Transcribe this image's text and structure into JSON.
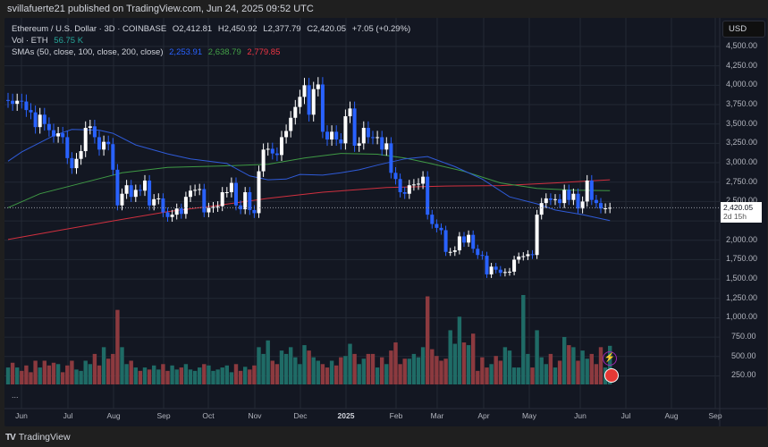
{
  "publisher_line": "svillafuerte21 published on TradingView.com, Jun 24, 2025 09:52 UTC",
  "legend": {
    "symbol": "Ethereum / U.S. Dollar · 3D · COINBASE",
    "open": "O2,412.81",
    "high": "H2,450.92",
    "low": "L2,377.79",
    "close": "C2,420.05",
    "change": "+7.05 (+0.29%)",
    "vol_label": "Vol · ETH",
    "vol_value": "56.75 K",
    "sma_label": "SMAs (50, close, 100, close, 200, close)",
    "sma50": "2,253.91",
    "sma100": "2,638.79",
    "sma200": "2,779.85"
  },
  "price_axis": {
    "currency": "USD",
    "labels": [
      "4,500.00",
      "4,250.00",
      "4,000.00",
      "3,750.00",
      "3,500.00",
      "3,250.00",
      "3,000.00",
      "2,750.00",
      "2,500.00",
      "2,000.00",
      "1,750.00",
      "1,500.00",
      "1,250.00",
      "1,000.00",
      "750.00",
      "500.00",
      "250.00"
    ],
    "current_price": "2,420.05",
    "countdown": "2d 15h"
  },
  "time_axis": [
    "Jun",
    "Jul",
    "Aug",
    "Sep",
    "Oct",
    "Nov",
    "Dec",
    "2025",
    "Feb",
    "Mar",
    "Apr",
    "May",
    "Jun",
    "Jul",
    "Aug",
    "Sep"
  ],
  "more_label": "...",
  "footer_brand": "TradingView",
  "colors": {
    "up": "#ffffff",
    "down": "#2962ff",
    "vol_up": "#1f6b66",
    "vol_down": "#8c3a3f",
    "sma50": "#2f5bd8",
    "sma100": "#3f9a45",
    "sma200": "#d1303f",
    "bg": "#131722"
  },
  "chart_data": {
    "type": "candlestick",
    "interval": "3D",
    "yrange": [
      250,
      4500
    ],
    "closes": [
      3800,
      3760,
      3800,
      3790,
      3680,
      3650,
      3460,
      3620,
      3500,
      3420,
      3340,
      3380,
      3330,
      3060,
      2930,
      3050,
      3150,
      3450,
      3470,
      3330,
      3170,
      3270,
      3240,
      2910,
      2450,
      2600,
      2710,
      2560,
      2650,
      2640,
      2770,
      2450,
      2530,
      2540,
      2360,
      2300,
      2330,
      2410,
      2340,
      2560,
      2640,
      2650,
      2660,
      2360,
      2420,
      2430,
      2440,
      2620,
      2620,
      2740,
      2450,
      2400,
      2620,
      2390,
      2350,
      2890,
      3170,
      3180,
      3120,
      3100,
      3330,
      3410,
      3580,
      3720,
      3850,
      4000,
      3620,
      3950,
      4010,
      3400,
      3300,
      3400,
      3300,
      3250,
      3600,
      3700,
      3220,
      3250,
      3450,
      3330,
      3320,
      3330,
      3170,
      3250,
      2870,
      2790,
      2620,
      2600,
      2710,
      2720,
      2730,
      2820,
      2330,
      2210,
      2160,
      2130,
      1850,
      1850,
      1870,
      2050,
      1970,
      2070,
      1890,
      1810,
      1800,
      1560,
      1660,
      1620,
      1580,
      1590,
      1595,
      1750,
      1790,
      1795,
      1820,
      1810,
      2330,
      2480,
      2540,
      2520,
      2530,
      2480,
      2650,
      2520,
      2600,
      2410,
      2500,
      2770,
      2520,
      2480,
      2410,
      2413,
      2420
    ],
    "volume_k": [
      25,
      32,
      25,
      20,
      28,
      18,
      35,
      25,
      35,
      28,
      32,
      30,
      18,
      28,
      35,
      22,
      20,
      35,
      30,
      45,
      28,
      55,
      38,
      45,
      110,
      55,
      30,
      35,
      25,
      20,
      25,
      22,
      28,
      22,
      30,
      20,
      28,
      22,
      25,
      30,
      22,
      20,
      25,
      30,
      28,
      20,
      22,
      25,
      28,
      18,
      30,
      20,
      26,
      22,
      28,
      55,
      45,
      65,
      35,
      30,
      50,
      45,
      55,
      40,
      30,
      58,
      50,
      40,
      35,
      30,
      25,
      35,
      28,
      40,
      42,
      60,
      45,
      30,
      38,
      45,
      45,
      25,
      40,
      30,
      50,
      62,
      30,
      38,
      38,
      45,
      40,
      55,
      130,
      52,
      42,
      35,
      38,
      80,
      60,
      100,
      62,
      58,
      75,
      20,
      40,
      25,
      30,
      42,
      35,
      55,
      50,
      25,
      25,
      132,
      45,
      25,
      80,
      40,
      30,
      45,
      25,
      35,
      70,
      58,
      55,
      35,
      50,
      38,
      45,
      30,
      55,
      25,
      57
    ],
    "sma50": [
      [
        0,
        3020
      ],
      [
        3,
        3140
      ],
      [
        10,
        3350
      ],
      [
        14,
        3430
      ],
      [
        20,
        3420
      ],
      [
        23,
        3380
      ],
      [
        28,
        3230
      ],
      [
        35,
        3115
      ],
      [
        40,
        3050
      ],
      [
        48,
        2990
      ],
      [
        53,
        2830
      ],
      [
        57,
        2780
      ],
      [
        61,
        2790
      ],
      [
        64,
        2850
      ],
      [
        69,
        2840
      ],
      [
        73,
        2870
      ],
      [
        77,
        2910
      ],
      [
        81,
        2970
      ],
      [
        87,
        3050
      ],
      [
        92,
        3080
      ],
      [
        98,
        2950
      ],
      [
        104,
        2790
      ],
      [
        110,
        2560
      ],
      [
        116,
        2470
      ],
      [
        120,
        2390
      ],
      [
        126,
        2330
      ],
      [
        132,
        2254
      ]
    ],
    "sma100": [
      [
        0,
        2420
      ],
      [
        7,
        2600
      ],
      [
        15,
        2720
      ],
      [
        25,
        2870
      ],
      [
        35,
        2940
      ],
      [
        48,
        2960
      ],
      [
        57,
        2980
      ],
      [
        65,
        3060
      ],
      [
        73,
        3120
      ],
      [
        81,
        3110
      ],
      [
        87,
        3060
      ],
      [
        92,
        3000
      ],
      [
        100,
        2890
      ],
      [
        108,
        2740
      ],
      [
        116,
        2670
      ],
      [
        124,
        2645
      ],
      [
        132,
        2639
      ]
    ],
    "sma200": [
      [
        0,
        2010
      ],
      [
        11,
        2125
      ],
      [
        23,
        2250
      ],
      [
        35,
        2370
      ],
      [
        46,
        2450
      ],
      [
        57,
        2540
      ],
      [
        69,
        2620
      ],
      [
        83,
        2680
      ],
      [
        96,
        2700
      ],
      [
        108,
        2705
      ],
      [
        120,
        2740
      ],
      [
        132,
        2780
      ]
    ]
  }
}
